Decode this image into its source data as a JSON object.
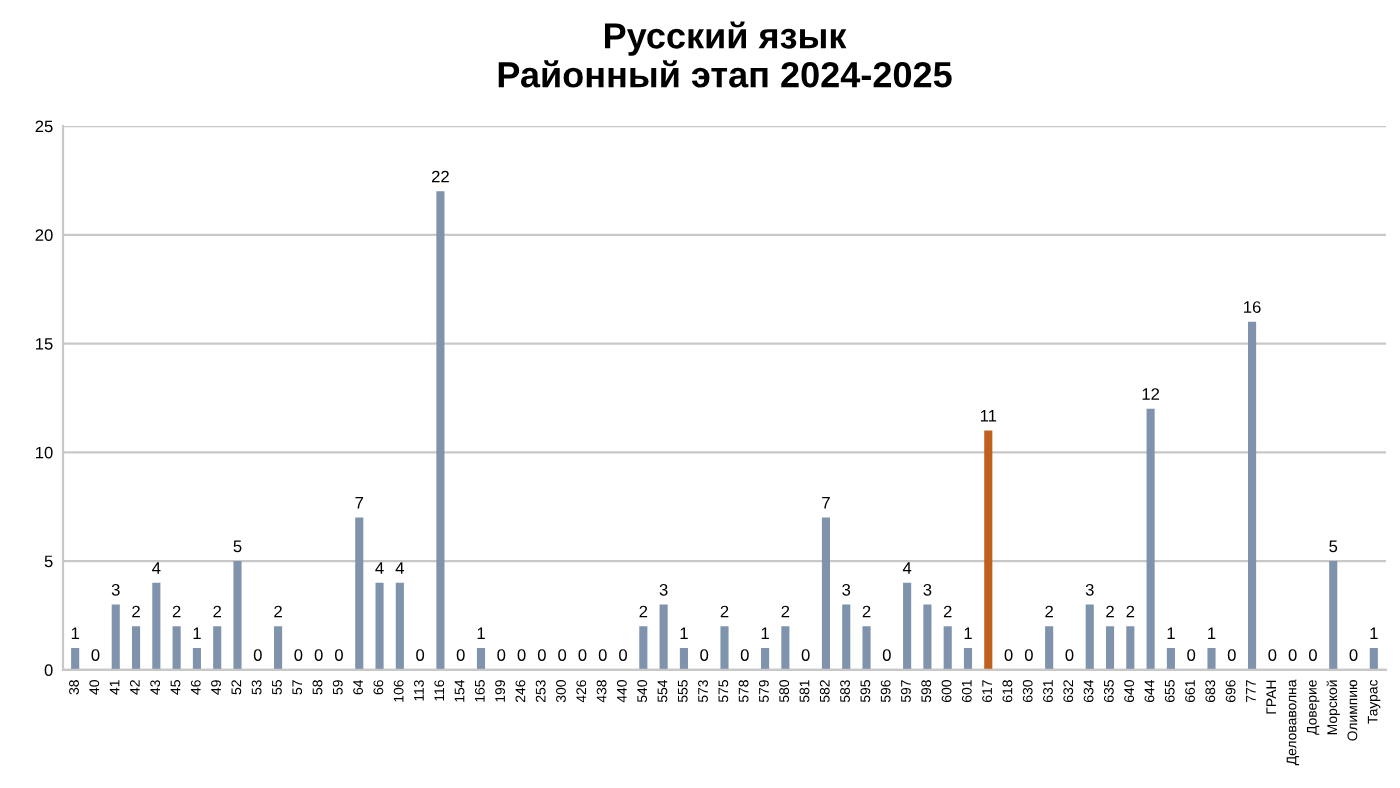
{
  "chart_data": {
    "type": "bar",
    "title": "Русский язык\nРайонный этап 2024-2025",
    "categories": [
      "38",
      "40",
      "41",
      "42",
      "43",
      "45",
      "46",
      "49",
      "52",
      "53",
      "55",
      "57",
      "58",
      "59",
      "64",
      "66",
      "106",
      "113",
      "116",
      "154",
      "165",
      "199",
      "246",
      "253",
      "300",
      "426",
      "438",
      "440",
      "540",
      "554",
      "555",
      "573",
      "575",
      "578",
      "579",
      "580",
      "581",
      "582",
      "583",
      "595",
      "596",
      "597",
      "598",
      "600",
      "601",
      "617",
      "618",
      "630",
      "631",
      "632",
      "634",
      "635",
      "640",
      "644",
      "655",
      "661",
      "683",
      "696",
      "777",
      "ГРАН",
      "Деловаволна",
      "Доверие",
      "Морской",
      "Олимпию",
      "Таурас"
    ],
    "values": [
      1,
      0,
      3,
      2,
      4,
      2,
      1,
      2,
      5,
      0,
      2,
      0,
      0,
      0,
      7,
      4,
      4,
      0,
      22,
      0,
      1,
      0,
      0,
      0,
      0,
      0,
      0,
      0,
      2,
      3,
      1,
      0,
      2,
      0,
      1,
      2,
      0,
      7,
      3,
      2,
      0,
      4,
      3,
      2,
      1,
      11,
      0,
      0,
      2,
      0,
      3,
      2,
      2,
      12,
      1,
      0,
      1,
      0,
      16,
      0,
      0,
      0,
      5,
      0,
      1
    ],
    "colors": [
      "#7f93ad",
      "#7f93ad",
      "#7f93ad",
      "#7f93ad",
      "#7f93ad",
      "#7f93ad",
      "#7f93ad",
      "#7f93ad",
      "#7f93ad",
      "#7f93ad",
      "#7f93ad",
      "#7f93ad",
      "#7f93ad",
      "#7f93ad",
      "#7f93ad",
      "#7f93ad",
      "#7f93ad",
      "#7f93ad",
      "#7f93ad",
      "#7f93ad",
      "#7f93ad",
      "#7f93ad",
      "#7f93ad",
      "#7f93ad",
      "#7f93ad",
      "#7f93ad",
      "#7f93ad",
      "#7f93ad",
      "#7f93ad",
      "#7f93ad",
      "#7f93ad",
      "#7f93ad",
      "#7f93ad",
      "#7f93ad",
      "#7f93ad",
      "#7f93ad",
      "#7f93ad",
      "#7f93ad",
      "#7f93ad",
      "#7f93ad",
      "#7f93ad",
      "#7f93ad",
      "#7f93ad",
      "#7f93ad",
      "#7f93ad",
      "#c0601f",
      "#7f93ad",
      "#7f93ad",
      "#7f93ad",
      "#7f93ad",
      "#7f93ad",
      "#7f93ad",
      "#7f93ad",
      "#7f93ad",
      "#7f93ad",
      "#7f93ad",
      "#7f93ad",
      "#7f93ad",
      "#7f93ad",
      "#7f93ad",
      "#7f93ad",
      "#7f93ad",
      "#7f93ad",
      "#7f93ad",
      "#7f93ad"
    ],
    "ylim": [
      0,
      25
    ],
    "yticks": [
      0,
      5,
      10,
      15,
      20,
      25
    ],
    "grid": "y",
    "data_labels": true
  }
}
